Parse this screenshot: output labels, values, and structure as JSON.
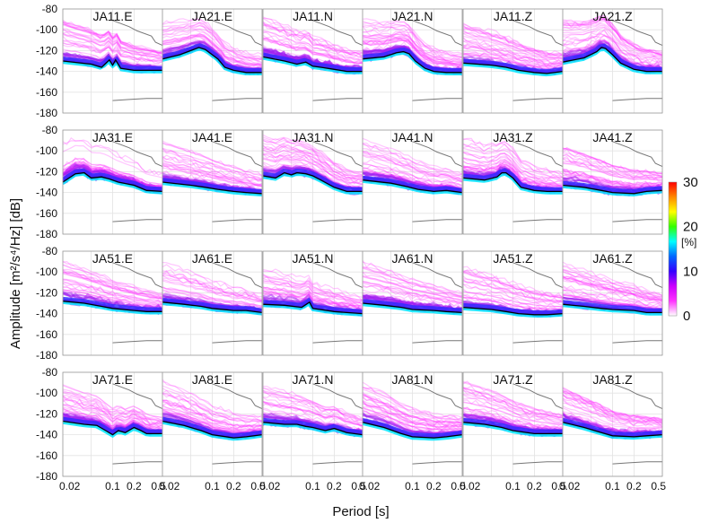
{
  "chart_data": {
    "type": "line",
    "description_type": "probability density function grid of power spectral density",
    "xlabel": "Period [s]",
    "ylabel": "Amplitude [m²/s⁴/Hz] [dB]",
    "x_scale": "log",
    "xlim": [
      0.02,
      0.5
    ],
    "ylim": [
      -180,
      -80
    ],
    "x_ticks": [
      "0.02",
      "0.1",
      "0.2",
      "0.5"
    ],
    "x_tick_values": [
      0.02,
      0.1,
      0.2,
      0.5
    ],
    "y_ticks": [
      "-80",
      "-100",
      "-120",
      "-140",
      "-160",
      "-180"
    ],
    "y_tick_values": [
      -80,
      -100,
      -120,
      -140,
      -160,
      -180
    ],
    "grid": true,
    "colorbar": {
      "label": "[%]",
      "ticks": [
        "0",
        "10",
        "20",
        "30"
      ],
      "range": [
        0,
        30
      ],
      "colors": [
        "#ffffff",
        "#ff33ff",
        "#cc00ff",
        "#3300ff",
        "#0066ff",
        "#00ffff",
        "#33ff00",
        "#ffff00",
        "#ff8800",
        "#ff0000"
      ]
    },
    "reference_models": {
      "high_noise": {
        "period": [
          0.1,
          0.17,
          0.22,
          0.35,
          0.4,
          0.5
        ],
        "db": [
          -91,
          -97,
          -101,
          -106,
          -112,
          -115
        ]
      },
      "low_noise": {
        "period": [
          0.1,
          0.17,
          0.3,
          0.5
        ],
        "db": [
          -168,
          -167,
          -166,
          -166
        ]
      }
    },
    "panels": [
      {
        "row": 0,
        "title": "JA11.E",
        "median": [
          [
            0.02,
            -130
          ],
          [
            0.05,
            -133
          ],
          [
            0.07,
            -136
          ],
          [
            0.09,
            -129
          ],
          [
            0.1,
            -134
          ],
          [
            0.11,
            -129
          ],
          [
            0.13,
            -137
          ],
          [
            0.2,
            -139
          ],
          [
            0.3,
            -139
          ],
          [
            0.5,
            -139
          ]
        ]
      },
      {
        "row": 0,
        "title": "JA21.E",
        "median": [
          [
            0.02,
            -128
          ],
          [
            0.035,
            -124
          ],
          [
            0.05,
            -120
          ],
          [
            0.065,
            -117
          ],
          [
            0.08,
            -119
          ],
          [
            0.1,
            -124
          ],
          [
            0.12,
            -128
          ],
          [
            0.15,
            -136
          ],
          [
            0.2,
            -139
          ],
          [
            0.3,
            -141
          ],
          [
            0.5,
            -141
          ]
        ]
      },
      {
        "row": 0,
        "title": "JA11.N",
        "median": [
          [
            0.02,
            -126
          ],
          [
            0.04,
            -130
          ],
          [
            0.06,
            -133
          ],
          [
            0.08,
            -131
          ],
          [
            0.1,
            -135
          ],
          [
            0.13,
            -136
          ],
          [
            0.2,
            -138
          ],
          [
            0.3,
            -140
          ],
          [
            0.5,
            -140
          ]
        ]
      },
      {
        "row": 0,
        "title": "JA21.N",
        "median": [
          [
            0.02,
            -128
          ],
          [
            0.04,
            -126
          ],
          [
            0.06,
            -122
          ],
          [
            0.075,
            -121
          ],
          [
            0.09,
            -123
          ],
          [
            0.11,
            -130
          ],
          [
            0.15,
            -137
          ],
          [
            0.2,
            -140
          ],
          [
            0.3,
            -141
          ],
          [
            0.5,
            -141
          ]
        ]
      },
      {
        "row": 0,
        "title": "JA11.Z",
        "median": [
          [
            0.02,
            -132
          ],
          [
            0.05,
            -134
          ],
          [
            0.08,
            -136
          ],
          [
            0.12,
            -139
          ],
          [
            0.2,
            -141
          ],
          [
            0.3,
            -142
          ],
          [
            0.5,
            -140
          ]
        ]
      },
      {
        "row": 0,
        "title": "JA21.Z",
        "median": [
          [
            0.02,
            -131
          ],
          [
            0.04,
            -127
          ],
          [
            0.06,
            -121
          ],
          [
            0.07,
            -117
          ],
          [
            0.08,
            -118
          ],
          [
            0.1,
            -124
          ],
          [
            0.13,
            -132
          ],
          [
            0.2,
            -138
          ],
          [
            0.3,
            -140
          ],
          [
            0.5,
            -140
          ]
        ]
      },
      {
        "row": 1,
        "title": "JA31.E",
        "median": [
          [
            0.02,
            -130
          ],
          [
            0.03,
            -122
          ],
          [
            0.04,
            -121
          ],
          [
            0.05,
            -126
          ],
          [
            0.07,
            -125
          ],
          [
            0.09,
            -127
          ],
          [
            0.12,
            -130
          ],
          [
            0.2,
            -133
          ],
          [
            0.3,
            -138
          ],
          [
            0.5,
            -139
          ]
        ]
      },
      {
        "row": 1,
        "title": "JA41.E",
        "median": [
          [
            0.02,
            -130
          ],
          [
            0.05,
            -133
          ],
          [
            0.08,
            -135
          ],
          [
            0.12,
            -137
          ],
          [
            0.2,
            -139
          ],
          [
            0.3,
            -140
          ],
          [
            0.5,
            -141
          ]
        ]
      },
      {
        "row": 1,
        "title": "JA31.N",
        "median": [
          [
            0.02,
            -124
          ],
          [
            0.03,
            -126
          ],
          [
            0.04,
            -121
          ],
          [
            0.05,
            -123
          ],
          [
            0.06,
            -121
          ],
          [
            0.08,
            -122
          ],
          [
            0.1,
            -124
          ],
          [
            0.13,
            -128
          ],
          [
            0.2,
            -135
          ],
          [
            0.3,
            -139
          ],
          [
            0.5,
            -139
          ]
        ]
      },
      {
        "row": 1,
        "title": "JA41.N",
        "median": [
          [
            0.02,
            -128
          ],
          [
            0.05,
            -131
          ],
          [
            0.08,
            -134
          ],
          [
            0.12,
            -137
          ],
          [
            0.2,
            -139
          ],
          [
            0.3,
            -138
          ],
          [
            0.5,
            -140
          ]
        ]
      },
      {
        "row": 1,
        "title": "JA31.Z",
        "median": [
          [
            0.02,
            -126
          ],
          [
            0.04,
            -128
          ],
          [
            0.06,
            -125
          ],
          [
            0.07,
            -121
          ],
          [
            0.08,
            -121
          ],
          [
            0.1,
            -126
          ],
          [
            0.13,
            -135
          ],
          [
            0.2,
            -138
          ],
          [
            0.3,
            -139
          ],
          [
            0.5,
            -139
          ]
        ]
      },
      {
        "row": 1,
        "title": "JA41.Z",
        "median": [
          [
            0.02,
            -133
          ],
          [
            0.04,
            -135
          ],
          [
            0.07,
            -138
          ],
          [
            0.1,
            -140
          ],
          [
            0.2,
            -141
          ],
          [
            0.3,
            -139
          ],
          [
            0.5,
            -138
          ]
        ]
      },
      {
        "row": 2,
        "title": "JA51.E",
        "median": [
          [
            0.02,
            -128
          ],
          [
            0.04,
            -130
          ],
          [
            0.07,
            -133
          ],
          [
            0.1,
            -135
          ],
          [
            0.2,
            -137
          ],
          [
            0.3,
            -138
          ],
          [
            0.5,
            -138
          ]
        ]
      },
      {
        "row": 2,
        "title": "JA61.E",
        "median": [
          [
            0.02,
            -129
          ],
          [
            0.04,
            -131
          ],
          [
            0.07,
            -133
          ],
          [
            0.1,
            -135
          ],
          [
            0.2,
            -137
          ],
          [
            0.3,
            -137
          ],
          [
            0.5,
            -139
          ]
        ]
      },
      {
        "row": 2,
        "title": "JA51.N",
        "median": [
          [
            0.02,
            -131
          ],
          [
            0.04,
            -132
          ],
          [
            0.07,
            -134
          ],
          [
            0.09,
            -129
          ],
          [
            0.1,
            -135
          ],
          [
            0.2,
            -138
          ],
          [
            0.3,
            -139
          ],
          [
            0.5,
            -140
          ]
        ]
      },
      {
        "row": 2,
        "title": "JA61.N",
        "median": [
          [
            0.02,
            -130
          ],
          [
            0.04,
            -132
          ],
          [
            0.07,
            -134
          ],
          [
            0.1,
            -136
          ],
          [
            0.2,
            -137
          ],
          [
            0.3,
            -138
          ],
          [
            0.5,
            -139
          ]
        ]
      },
      {
        "row": 2,
        "title": "JA51.Z",
        "median": [
          [
            0.02,
            -134
          ],
          [
            0.05,
            -136
          ],
          [
            0.08,
            -138
          ],
          [
            0.12,
            -140
          ],
          [
            0.2,
            -141
          ],
          [
            0.3,
            -141
          ],
          [
            0.5,
            -140
          ]
        ]
      },
      {
        "row": 2,
        "title": "JA61.Z",
        "median": [
          [
            0.02,
            -131
          ],
          [
            0.04,
            -133
          ],
          [
            0.07,
            -135
          ],
          [
            0.1,
            -136
          ],
          [
            0.2,
            -137
          ],
          [
            0.3,
            -139
          ],
          [
            0.5,
            -139
          ]
        ]
      },
      {
        "row": 3,
        "title": "JA71.E",
        "median": [
          [
            0.02,
            -127
          ],
          [
            0.04,
            -130
          ],
          [
            0.06,
            -131
          ],
          [
            0.08,
            -136
          ],
          [
            0.1,
            -140
          ],
          [
            0.12,
            -136
          ],
          [
            0.15,
            -138
          ],
          [
            0.2,
            -133
          ],
          [
            0.25,
            -136
          ],
          [
            0.3,
            -139
          ],
          [
            0.5,
            -139
          ]
        ]
      },
      {
        "row": 3,
        "title": "JA81.E",
        "median": [
          [
            0.02,
            -127
          ],
          [
            0.04,
            -131
          ],
          [
            0.07,
            -136
          ],
          [
            0.1,
            -140
          ],
          [
            0.2,
            -143
          ],
          [
            0.3,
            -142
          ],
          [
            0.5,
            -140
          ]
        ]
      },
      {
        "row": 3,
        "title": "JA71.N",
        "median": [
          [
            0.02,
            -128
          ],
          [
            0.04,
            -130
          ],
          [
            0.06,
            -130
          ],
          [
            0.08,
            -132
          ],
          [
            0.1,
            -133
          ],
          [
            0.15,
            -136
          ],
          [
            0.2,
            -134
          ],
          [
            0.3,
            -138
          ],
          [
            0.5,
            -140
          ]
        ]
      },
      {
        "row": 3,
        "title": "JA81.N",
        "median": [
          [
            0.02,
            -128
          ],
          [
            0.04,
            -133
          ],
          [
            0.07,
            -139
          ],
          [
            0.1,
            -142
          ],
          [
            0.2,
            -143
          ],
          [
            0.3,
            -142
          ],
          [
            0.5,
            -140
          ]
        ]
      },
      {
        "row": 3,
        "title": "JA71.Z",
        "median": [
          [
            0.02,
            -128
          ],
          [
            0.04,
            -130
          ],
          [
            0.07,
            -133
          ],
          [
            0.1,
            -136
          ],
          [
            0.2,
            -139
          ],
          [
            0.3,
            -139
          ],
          [
            0.5,
            -139
          ]
        ]
      },
      {
        "row": 3,
        "title": "JA81.Z",
        "median": [
          [
            0.02,
            -128
          ],
          [
            0.04,
            -133
          ],
          [
            0.07,
            -138
          ],
          [
            0.1,
            -141
          ],
          [
            0.2,
            -142
          ],
          [
            0.3,
            -141
          ],
          [
            0.5,
            -140
          ]
        ]
      }
    ]
  }
}
